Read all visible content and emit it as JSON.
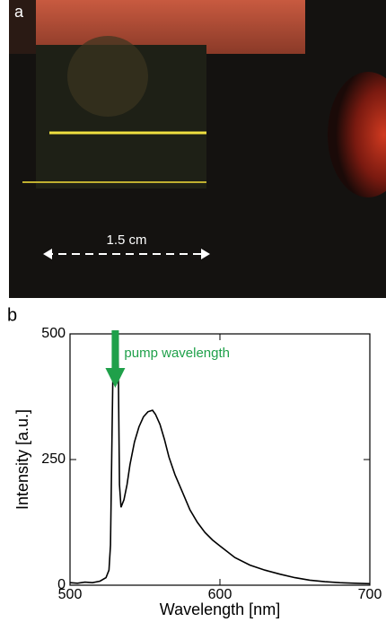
{
  "panel_a": {
    "label": "a",
    "scale_label": "1.5 cm"
  },
  "chart_data": {
    "type": "line",
    "panel_label": "b",
    "annotation": "pump wavelength",
    "x_label": "Wavelength [nm]",
    "y_label": "Intensity [a.u.]",
    "x": [
      500,
      505,
      510,
      515,
      520,
      524,
      526,
      527,
      528,
      529,
      532,
      533,
      534,
      536,
      538,
      540,
      543,
      546,
      549,
      552,
      555,
      557,
      560,
      563,
      566,
      570,
      575,
      580,
      585,
      590,
      595,
      600,
      610,
      620,
      630,
      640,
      650,
      660,
      670,
      680,
      690,
      700
    ],
    "values": [
      5,
      4,
      6,
      5,
      8,
      15,
      30,
      80,
      300,
      500,
      500,
      200,
      155,
      170,
      200,
      240,
      285,
      315,
      335,
      345,
      348,
      340,
      320,
      290,
      255,
      220,
      185,
      150,
      125,
      105,
      90,
      78,
      55,
      40,
      30,
      22,
      15,
      10,
      7,
      5,
      4,
      3
    ],
    "color": "#000000",
    "annotation_color": "#1fa04a",
    "xlim": [
      500,
      700
    ],
    "ylim": [
      0,
      500
    ],
    "xticks": [
      500,
      600,
      700
    ],
    "yticks": [
      0,
      250,
      500
    ]
  }
}
